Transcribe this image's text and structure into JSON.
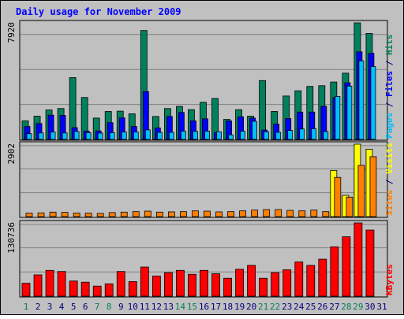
{
  "title": "Daily usage for November 2009",
  "colors": {
    "background": "#c0c0c0",
    "frame": "#a0a0a0",
    "title": "#0000ff",
    "grid": "#808080",
    "hits": "#00805c",
    "files": "#0000ff",
    "pages": "#00c0ff",
    "visits": "#ffff00",
    "sites": "#ff8000",
    "kbytes": "#ff0000",
    "weekend_day_label": "#00805c",
    "weekday_label": "#000080"
  },
  "chart_data": [
    {
      "type": "bar",
      "name": "hits-files-pages",
      "ymax_label": "7920",
      "ymax": 7920,
      "right_label_parts": [
        {
          "text": "Pages",
          "color": "pages"
        },
        {
          "text": " / ",
          "color": "weekday_label"
        },
        {
          "text": "Files",
          "color": "files"
        },
        {
          "text": " / ",
          "color": "weekday_label"
        },
        {
          "text": "Hits",
          "color": "hits"
        }
      ],
      "series": [
        {
          "name": "Hits",
          "color": "hits",
          "values": [
            1260,
            1580,
            2000,
            2100,
            4200,
            2850,
            1450,
            1900,
            1920,
            1740,
            7400,
            1560,
            2100,
            2240,
            2020,
            2520,
            2780,
            1360,
            2020,
            1580,
            4000,
            1900,
            2950,
            3300,
            3600,
            3650,
            3900,
            4500,
            7920,
            7200,
            0
          ]
        },
        {
          "name": "Files",
          "color": "files",
          "values": [
            880,
            1080,
            1650,
            1630,
            800,
            570,
            580,
            1140,
            1460,
            880,
            3250,
            780,
            1560,
            1830,
            1260,
            1400,
            480,
            1260,
            1540,
            1450,
            640,
            1040,
            1420,
            1860,
            1860,
            2250,
            2850,
            3850,
            5950,
            5850,
            0
          ]
        },
        {
          "name": "Pages",
          "color": "pages",
          "values": [
            390,
            440,
            500,
            440,
            540,
            460,
            430,
            460,
            500,
            500,
            650,
            480,
            480,
            560,
            540,
            560,
            520,
            310,
            560,
            1230,
            520,
            480,
            610,
            710,
            720,
            530,
            2920,
            3620,
            5340,
            4950,
            0
          ]
        }
      ]
    },
    {
      "type": "bar",
      "name": "visits-sites",
      "ymax_label": "2902",
      "ymax": 2902,
      "right_label_parts": [
        {
          "text": "Sites",
          "color": "sites"
        },
        {
          "text": " / ",
          "color": "weekday_label"
        },
        {
          "text": "Visits",
          "color": "visits"
        }
      ],
      "series": [
        {
          "name": "Visits",
          "color": "visits",
          "values": [
            0,
            0,
            0,
            0,
            0,
            0,
            0,
            0,
            0,
            0,
            0,
            0,
            0,
            0,
            0,
            0,
            0,
            0,
            0,
            0,
            0,
            0,
            0,
            0,
            0,
            0,
            1850,
            850,
            2902,
            2700,
            0
          ]
        },
        {
          "name": "Sites",
          "color": "sites",
          "values": [
            140,
            150,
            180,
            170,
            140,
            140,
            130,
            160,
            180,
            200,
            220,
            180,
            190,
            200,
            230,
            220,
            190,
            200,
            230,
            260,
            280,
            280,
            250,
            230,
            260,
            200,
            1570,
            780,
            2050,
            2400,
            0
          ]
        }
      ]
    },
    {
      "type": "bar",
      "name": "kbytes",
      "ymax_label": "130736",
      "ymax": 130736,
      "right_label_parts": [
        {
          "text": "KBytes",
          "color": "kbytes"
        }
      ],
      "series": [
        {
          "name": "KBytes",
          "color": "kbytes",
          "values": [
            23000,
            38000,
            46000,
            44000,
            27000,
            25000,
            18000,
            22000,
            44000,
            26000,
            52000,
            36000,
            42000,
            46000,
            39000,
            46000,
            40000,
            32000,
            48000,
            55000,
            32000,
            42000,
            47000,
            61000,
            55000,
            66000,
            88000,
            106000,
            130736,
            118000,
            0
          ]
        }
      ]
    }
  ],
  "days": [
    "1",
    "2",
    "3",
    "4",
    "5",
    "6",
    "7",
    "8",
    "9",
    "10",
    "11",
    "12",
    "13",
    "14",
    "15",
    "16",
    "17",
    "18",
    "19",
    "20",
    "21",
    "22",
    "23",
    "24",
    "25",
    "26",
    "27",
    "28",
    "29",
    "30",
    "31"
  ],
  "weekend_days": [
    1,
    7,
    8,
    14,
    15,
    21,
    22,
    28,
    29
  ]
}
